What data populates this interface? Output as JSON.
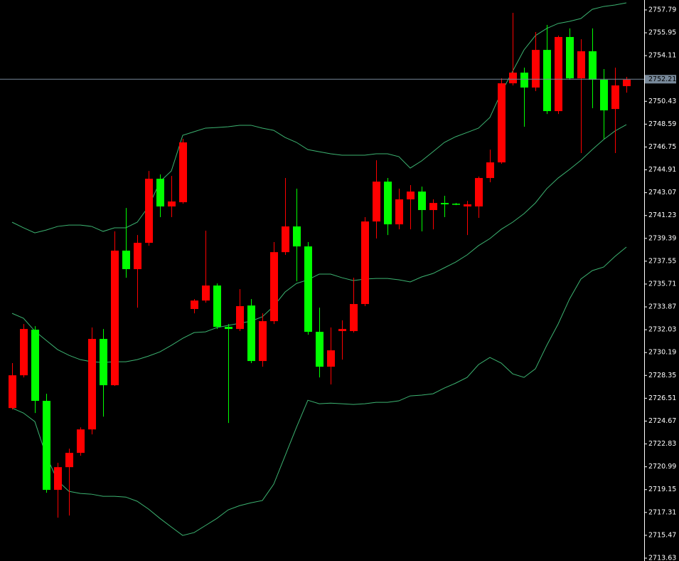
{
  "chart_data": {
    "type": "candlestick",
    "up_color": "#ff0000",
    "down_color": "#00ff00",
    "open": [
      2725.72,
      2728.36,
      2732.03,
      2726.3,
      2719.13,
      2720.96,
      2722.11,
      2724.0,
      2731.29,
      2727.56,
      2738.4,
      2736.91,
      2739.03,
      2744.19,
      2741.96,
      2742.3,
      2733.7,
      2734.38,
      2735.59,
      2732.26,
      2732.09,
      2733.98,
      2729.51,
      2732.72,
      2738.28,
      2740.35,
      2738.74,
      2731.86,
      2729.05,
      2731.92,
      2731.92,
      2734.1,
      2740.75,
      2743.96,
      2740.52,
      2742.53,
      2743.16,
      2741.67,
      2742.24,
      2742.18,
      2741.96,
      2741.96,
      2744.25,
      2745.51,
      2751.88,
      2752.74,
      2751.54,
      2754.57,
      2749.64,
      2755.61,
      2752.28,
      2754.46,
      2752.17,
      2749.81,
      2751.65
    ],
    "high": [
      2729.34,
      2732.49,
      2732.32,
      2726.87,
      2721.31,
      2722.45,
      2724.17,
      2732.21,
      2732.09,
      2739.95,
      2741.84,
      2739.66,
      2744.82,
      2744.54,
      2744.42,
      2747.41,
      2734.5,
      2740.01,
      2735.76,
      2732.49,
      2735.3,
      2734.5,
      2733.35,
      2739.09,
      2744.25,
      2743.39,
      2739.09,
      2733.81,
      2732.21,
      2732.78,
      2736.22,
      2741.1,
      2745.68,
      2744.25,
      2743.39,
      2743.68,
      2743.56,
      2742.53,
      2742.82,
      2742.24,
      2742.41,
      2744.37,
      2746.54,
      2752.28,
      2757.56,
      2753.14,
      2756.01,
      2756.58,
      2755.72,
      2756.3,
      2755.43,
      2756.3,
      2753.03,
      2753.14,
      2752.4
    ],
    "low": [
      2725.61,
      2728.19,
      2725.32,
      2718.9,
      2716.89,
      2717.06,
      2721.88,
      2723.6,
      2725.03,
      2727.5,
      2736.22,
      2733.81,
      2738.8,
      2741.1,
      2741.1,
      2742.18,
      2733.35,
      2734.21,
      2732.09,
      2724.52,
      2731.92,
      2729.34,
      2729.05,
      2732.49,
      2738.06,
      2735.93,
      2731.63,
      2728.19,
      2727.62,
      2729.62,
      2731.8,
      2733.93,
      2739.38,
      2739.66,
      2740.12,
      2740.12,
      2739.95,
      2740.12,
      2741.1,
      2742.07,
      2739.66,
      2741.04,
      2743.91,
      2745.4,
      2751.71,
      2748.38,
      2751.25,
      2749.41,
      2749.41,
      2752.17,
      2746.26,
      2749.87,
      2747.41,
      2746.26,
      2751.13
    ],
    "close": [
      2728.36,
      2732.09,
      2726.3,
      2719.13,
      2720.96,
      2722.11,
      2724.0,
      2731.29,
      2727.56,
      2738.4,
      2736.91,
      2739.03,
      2744.19,
      2741.96,
      2742.36,
      2747.12,
      2734.38,
      2735.59,
      2732.26,
      2732.09,
      2733.93,
      2729.51,
      2732.72,
      2738.28,
      2740.35,
      2738.74,
      2731.86,
      2729.05,
      2730.37,
      2732.09,
      2734.1,
      2740.75,
      2743.96,
      2740.52,
      2742.53,
      2743.16,
      2741.67,
      2742.24,
      2742.13,
      2742.13,
      2742.13,
      2744.25,
      2745.51,
      2751.88,
      2752.74,
      2751.54,
      2754.57,
      2749.64,
      2755.61,
      2752.28,
      2754.46,
      2752.17,
      2749.7,
      2751.71,
      2752.17
    ],
    "bands": {
      "color": "#3cb371",
      "upper": [
        2740.69,
        2740.24,
        2739.83,
        2740.06,
        2740.35,
        2740.46,
        2740.46,
        2740.35,
        2739.95,
        2740.24,
        2740.24,
        2740.69,
        2741.96,
        2743.96,
        2744.82,
        2747.69,
        2747.98,
        2748.27,
        2748.32,
        2748.38,
        2748.5,
        2748.5,
        2748.27,
        2748.09,
        2747.52,
        2747.12,
        2746.54,
        2746.37,
        2746.2,
        2746.09,
        2746.09,
        2746.09,
        2746.2,
        2746.2,
        2745.97,
        2745.05,
        2745.63,
        2746.37,
        2747.12,
        2747.58,
        2747.92,
        2748.27,
        2749.13,
        2751.13,
        2752.85,
        2754.57,
        2755.72,
        2756.3,
        2756.7,
        2756.87,
        2757.1,
        2757.84,
        2758.07,
        2758.19,
        2758.36
      ],
      "middle": [
        2733.35,
        2732.95,
        2731.92,
        2731.17,
        2730.43,
        2729.97,
        2729.62,
        2729.45,
        2729.39,
        2729.45,
        2729.45,
        2729.62,
        2729.91,
        2730.25,
        2730.77,
        2731.34,
        2731.8,
        2731.86,
        2732.2,
        2732.38,
        2732.55,
        2732.72,
        2733.07,
        2733.93,
        2735.07,
        2735.76,
        2736.05,
        2736.51,
        2736.51,
        2736.22,
        2735.99,
        2736.11,
        2736.16,
        2736.16,
        2736.05,
        2735.88,
        2736.28,
        2736.56,
        2737.02,
        2737.48,
        2738.06,
        2738.8,
        2739.37,
        2740.12,
        2740.69,
        2741.38,
        2742.24,
        2743.39,
        2744.25,
        2744.94,
        2745.68,
        2746.54,
        2747.35,
        2748.04,
        2748.55
      ],
      "lower": [
        2725.72,
        2725.32,
        2724.63,
        2721.88,
        2719.87,
        2719.01,
        2718.84,
        2718.78,
        2718.61,
        2718.61,
        2718.55,
        2718.21,
        2717.58,
        2716.83,
        2716.14,
        2715.46,
        2715.69,
        2716.26,
        2716.83,
        2717.52,
        2717.86,
        2718.09,
        2718.27,
        2719.59,
        2721.88,
        2724.17,
        2726.35,
        2726.07,
        2726.12,
        2726.07,
        2726.01,
        2726.07,
        2726.18,
        2726.18,
        2726.3,
        2726.7,
        2726.76,
        2726.87,
        2727.33,
        2727.73,
        2728.19,
        2729.22,
        2729.8,
        2729.34,
        2728.48,
        2728.19,
        2728.88,
        2730.77,
        2732.49,
        2734.5,
        2736.11,
        2736.79,
        2737.08,
        2737.94,
        2738.69
      ]
    },
    "price_line": {
      "value": 2752.21,
      "color": "#778899"
    },
    "ylim": [
      2713.4,
      2758.59
    ],
    "yticks": [
      2757.79,
      2755.95,
      2754.11,
      2752.27,
      2750.43,
      2748.59,
      2746.75,
      2744.91,
      2743.07,
      2741.23,
      2739.39,
      2737.55,
      2735.71,
      2733.87,
      2732.03,
      2730.19,
      2728.35,
      2726.51,
      2724.67,
      2722.83,
      2720.99,
      2719.15,
      2717.31,
      2715.47,
      2713.63
    ]
  }
}
